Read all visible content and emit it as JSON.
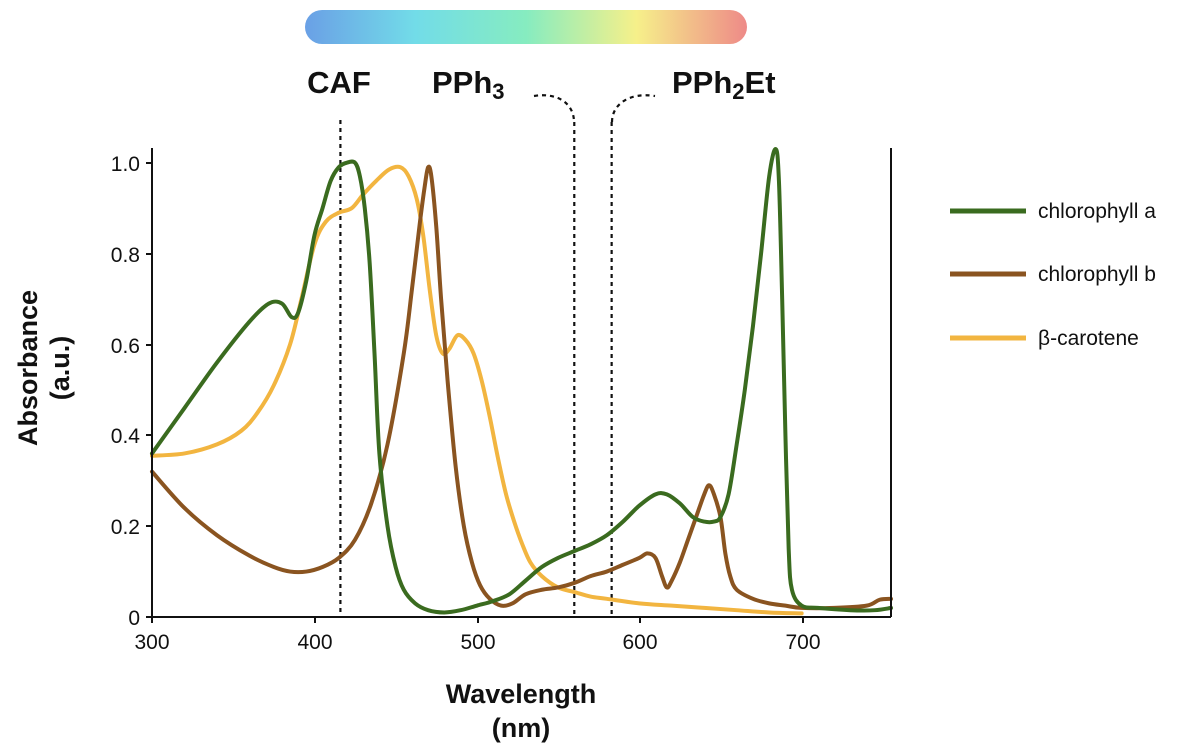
{
  "chart_data": {
    "type": "line",
    "xlabel": "Wavelength",
    "xlabel_unit": "(nm)",
    "ylabel": "Absorbance",
    "ylabel_unit": "(a.u.)",
    "xlim": [
      300,
      755
    ],
    "ylim": [
      0,
      1.05
    ],
    "x_ticks": [
      300,
      400,
      500,
      600,
      700
    ],
    "x_tick_labels": [
      "300",
      "400",
      "500",
      "600",
      "700"
    ],
    "y_ticks": [
      0,
      0.2,
      0.4,
      0.6,
      0.8,
      1.0
    ],
    "y_tick_labels": [
      "0",
      "0.2",
      "0.4",
      "0.6",
      "0.8",
      "1.0"
    ],
    "grid": false,
    "legend_position": "right",
    "spectrum_bar_colors": [
      "#6aa0e6",
      "#72dce8",
      "#86ecc0",
      "#f6f08a",
      "#ee8a88"
    ],
    "markers": [
      {
        "label": "CAF",
        "x": 416
      },
      {
        "label": "PPh",
        "subscript": "3",
        "x": 560
      },
      {
        "label_main": "PPh",
        "subscript": "2",
        "label_suffix": "Et",
        "x": 583
      }
    ],
    "series": [
      {
        "name": "chlorophyll a",
        "color": "#3a6b1f",
        "points": [
          [
            300,
            0.36
          ],
          [
            320,
            0.46
          ],
          [
            340,
            0.56
          ],
          [
            360,
            0.65
          ],
          [
            372,
            0.69
          ],
          [
            380,
            0.69
          ],
          [
            386,
            0.66
          ],
          [
            390,
            0.67
          ],
          [
            395,
            0.74
          ],
          [
            400,
            0.84
          ],
          [
            405,
            0.9
          ],
          [
            410,
            0.96
          ],
          [
            415,
            0.99
          ],
          [
            420,
            1.0
          ],
          [
            425,
            1.0
          ],
          [
            428,
            0.97
          ],
          [
            431,
            0.9
          ],
          [
            434,
            0.78
          ],
          [
            437,
            0.58
          ],
          [
            440,
            0.36
          ],
          [
            445,
            0.2
          ],
          [
            450,
            0.11
          ],
          [
            455,
            0.06
          ],
          [
            462,
            0.03
          ],
          [
            470,
            0.015
          ],
          [
            480,
            0.01
          ],
          [
            490,
            0.015
          ],
          [
            500,
            0.025
          ],
          [
            510,
            0.035
          ],
          [
            520,
            0.05
          ],
          [
            530,
            0.08
          ],
          [
            540,
            0.11
          ],
          [
            550,
            0.13
          ],
          [
            560,
            0.145
          ],
          [
            570,
            0.16
          ],
          [
            580,
            0.18
          ],
          [
            590,
            0.21
          ],
          [
            600,
            0.245
          ],
          [
            610,
            0.27
          ],
          [
            617,
            0.27
          ],
          [
            625,
            0.25
          ],
          [
            633,
            0.22
          ],
          [
            640,
            0.21
          ],
          [
            646,
            0.21
          ],
          [
            650,
            0.22
          ],
          [
            655,
            0.27
          ],
          [
            660,
            0.38
          ],
          [
            665,
            0.5
          ],
          [
            670,
            0.64
          ],
          [
            675,
            0.8
          ],
          [
            680,
            0.97
          ],
          [
            684,
            1.03
          ],
          [
            686,
            0.96
          ],
          [
            688,
            0.7
          ],
          [
            690,
            0.4
          ],
          [
            692,
            0.15
          ],
          [
            694,
            0.06
          ],
          [
            700,
            0.025
          ],
          [
            710,
            0.02
          ],
          [
            730,
            0.015
          ],
          [
            745,
            0.015
          ],
          [
            755,
            0.02
          ]
        ]
      },
      {
        "name": "chlorophyll b",
        "color": "#8a5420",
        "points": [
          [
            300,
            0.32
          ],
          [
            320,
            0.24
          ],
          [
            340,
            0.18
          ],
          [
            360,
            0.135
          ],
          [
            375,
            0.11
          ],
          [
            385,
            0.1
          ],
          [
            395,
            0.1
          ],
          [
            405,
            0.11
          ],
          [
            415,
            0.13
          ],
          [
            425,
            0.17
          ],
          [
            435,
            0.25
          ],
          [
            445,
            0.38
          ],
          [
            455,
            0.58
          ],
          [
            460,
            0.72
          ],
          [
            465,
            0.87
          ],
          [
            468,
            0.95
          ],
          [
            470,
            0.99
          ],
          [
            472,
            0.97
          ],
          [
            475,
            0.86
          ],
          [
            478,
            0.7
          ],
          [
            482,
            0.52
          ],
          [
            487,
            0.33
          ],
          [
            492,
            0.2
          ],
          [
            497,
            0.12
          ],
          [
            502,
            0.07
          ],
          [
            508,
            0.04
          ],
          [
            515,
            0.025
          ],
          [
            522,
            0.03
          ],
          [
            530,
            0.05
          ],
          [
            540,
            0.06
          ],
          [
            550,
            0.065
          ],
          [
            560,
            0.075
          ],
          [
            570,
            0.09
          ],
          [
            580,
            0.1
          ],
          [
            590,
            0.115
          ],
          [
            600,
            0.13
          ],
          [
            605,
            0.14
          ],
          [
            610,
            0.13
          ],
          [
            614,
            0.09
          ],
          [
            617,
            0.065
          ],
          [
            620,
            0.08
          ],
          [
            625,
            0.12
          ],
          [
            630,
            0.17
          ],
          [
            635,
            0.22
          ],
          [
            640,
            0.27
          ],
          [
            643,
            0.29
          ],
          [
            646,
            0.27
          ],
          [
            650,
            0.22
          ],
          [
            653,
            0.14
          ],
          [
            656,
            0.09
          ],
          [
            660,
            0.06
          ],
          [
            670,
            0.04
          ],
          [
            680,
            0.03
          ],
          [
            690,
            0.025
          ],
          [
            700,
            0.02
          ],
          [
            720,
            0.02
          ],
          [
            740,
            0.025
          ],
          [
            748,
            0.038
          ],
          [
            755,
            0.04
          ]
        ]
      },
      {
        "name": "β-carotene",
        "color": "#f2b540",
        "points": [
          [
            300,
            0.355
          ],
          [
            320,
            0.36
          ],
          [
            340,
            0.38
          ],
          [
            355,
            0.41
          ],
          [
            365,
            0.45
          ],
          [
            375,
            0.51
          ],
          [
            385,
            0.6
          ],
          [
            392,
            0.7
          ],
          [
            400,
            0.82
          ],
          [
            407,
            0.87
          ],
          [
            415,
            0.89
          ],
          [
            423,
            0.9
          ],
          [
            430,
            0.93
          ],
          [
            438,
            0.96
          ],
          [
            446,
            0.985
          ],
          [
            453,
            0.99
          ],
          [
            458,
            0.97
          ],
          [
            463,
            0.92
          ],
          [
            467,
            0.84
          ],
          [
            471,
            0.72
          ],
          [
            475,
            0.62
          ],
          [
            479,
            0.58
          ],
          [
            483,
            0.59
          ],
          [
            488,
            0.62
          ],
          [
            493,
            0.61
          ],
          [
            498,
            0.58
          ],
          [
            503,
            0.52
          ],
          [
            508,
            0.44
          ],
          [
            513,
            0.35
          ],
          [
            518,
            0.27
          ],
          [
            523,
            0.21
          ],
          [
            528,
            0.16
          ],
          [
            533,
            0.12
          ],
          [
            540,
            0.09
          ],
          [
            550,
            0.065
          ],
          [
            560,
            0.055
          ],
          [
            570,
            0.045
          ],
          [
            580,
            0.04
          ],
          [
            600,
            0.03
          ],
          [
            620,
            0.025
          ],
          [
            640,
            0.02
          ],
          [
            660,
            0.015
          ],
          [
            680,
            0.01
          ],
          [
            700,
            0.008
          ]
        ]
      }
    ]
  }
}
